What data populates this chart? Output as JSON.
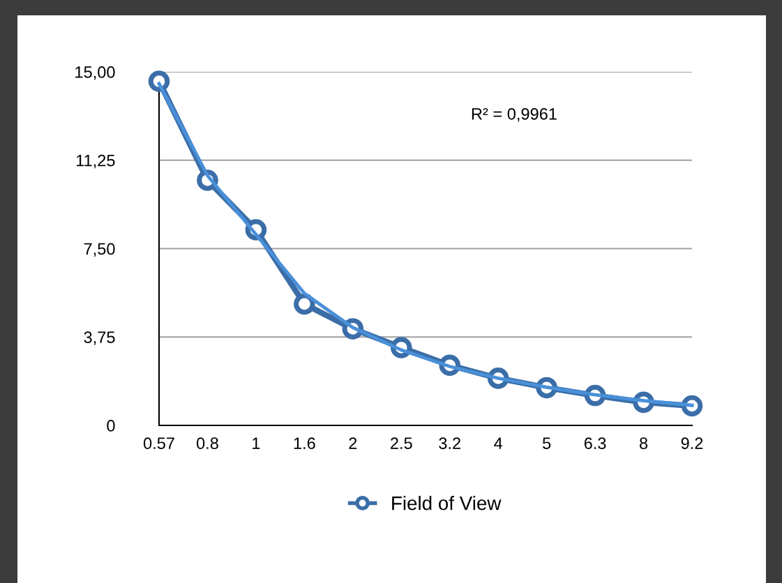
{
  "chart_data": {
    "type": "line",
    "categories": [
      "0.57",
      "0.8",
      "1",
      "1.6",
      "2",
      "2.5",
      "3.2",
      "4",
      "5",
      "6.3",
      "8",
      "9.2"
    ],
    "series": [
      {
        "name": "Field of View",
        "color": "#3b6ea8",
        "marker": "circle",
        "values": [
          14.6,
          10.4,
          8.3,
          5.15,
          4.1,
          3.3,
          2.55,
          2.0,
          1.6,
          1.27,
          0.98,
          0.83
        ]
      },
      {
        "type": "line",
        "color": "#4a90d9",
        "marker": "none",
        "values": [
          14.5,
          10.6,
          8.1,
          5.6,
          4.15,
          3.2,
          2.5,
          2.0,
          1.62,
          1.3,
          1.05,
          0.85
        ]
      }
    ],
    "ylim": [
      0,
      15
    ],
    "yticks": [
      0,
      {
        "value": 3.75,
        "label": "3,75"
      },
      {
        "value": 7.5,
        "label": "7,50"
      },
      {
        "value": 11.25,
        "label": "11,25"
      },
      {
        "value": 15,
        "label": "15,00"
      }
    ],
    "grid": "y",
    "legend": "bottom",
    "annotations": [
      "R² = 0,9961"
    ]
  }
}
